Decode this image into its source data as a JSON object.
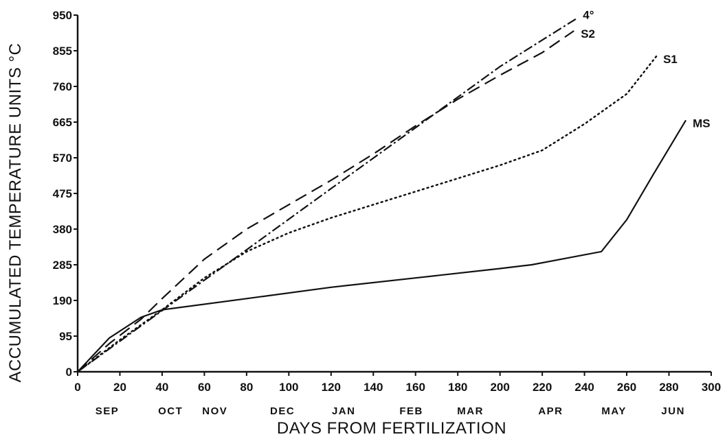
{
  "chart_data": {
    "type": "line",
    "x_label": "DAYS FROM FERTILIZATION",
    "y_label": "ACCUMULATED TEMPERATURE UNITS °C",
    "xlim": [
      0,
      300
    ],
    "ylim": [
      0,
      950
    ],
    "xticks": [
      0,
      20,
      40,
      60,
      80,
      100,
      120,
      140,
      160,
      180,
      200,
      220,
      240,
      260,
      280,
      300
    ],
    "yticks": [
      0,
      95,
      190,
      285,
      380,
      475,
      570,
      665,
      760,
      855,
      950
    ],
    "x2ticks": [
      {
        "value": 14,
        "label": "SEP"
      },
      {
        "value": 44,
        "label": "OCT"
      },
      {
        "value": 65,
        "label": "NOV"
      },
      {
        "value": 97,
        "label": "DEC"
      },
      {
        "value": 126,
        "label": "JAN"
      },
      {
        "value": 158,
        "label": "FEB"
      },
      {
        "value": 186,
        "label": "MAR"
      },
      {
        "value": 224,
        "label": "APR"
      },
      {
        "value": 254,
        "label": "MAY"
      },
      {
        "value": 282,
        "label": "JUN"
      }
    ],
    "grid": false,
    "series": [
      {
        "name": "4°",
        "color": "#111111",
        "style": "dashdot",
        "x": [
          0,
          40,
          80,
          120,
          160,
          200,
          236
        ],
        "values": [
          0,
          163,
          325,
          488,
          650,
          813,
          940
        ]
      },
      {
        "name": "S2",
        "color": "#111111",
        "style": "dashed",
        "x": [
          0,
          15,
          30,
          40,
          60,
          80,
          100,
          120,
          140,
          160,
          180,
          200,
          220,
          235
        ],
        "values": [
          0,
          75,
          140,
          195,
          300,
          380,
          445,
          510,
          580,
          655,
          726,
          790,
          850,
          908
        ]
      },
      {
        "name": "S1",
        "color": "#111111",
        "style": "dotted",
        "x": [
          0,
          20,
          40,
          60,
          80,
          100,
          120,
          140,
          160,
          180,
          200,
          220,
          240,
          260,
          274
        ],
        "values": [
          0,
          85,
          165,
          250,
          320,
          370,
          410,
          445,
          480,
          515,
          550,
          590,
          660,
          740,
          840
        ]
      },
      {
        "name": "MS",
        "color": "#111111",
        "style": "solid",
        "x": [
          0,
          15,
          30,
          40,
          80,
          120,
          160,
          200,
          215,
          248,
          260,
          272,
          288
        ],
        "values": [
          0,
          90,
          145,
          165,
          195,
          225,
          250,
          275,
          285,
          320,
          405,
          520,
          670
        ]
      }
    ]
  }
}
